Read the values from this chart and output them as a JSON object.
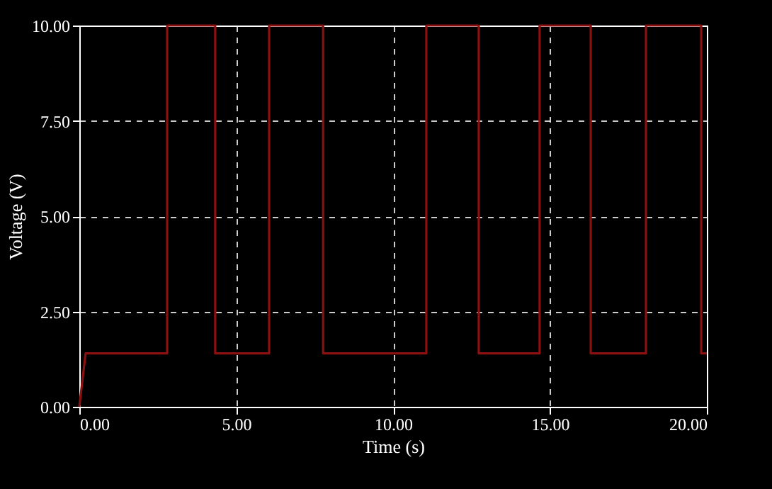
{
  "chart_data": {
    "type": "line",
    "xlabel": "Time (s)",
    "ylabel": "Voltage (V)",
    "x": [
      0,
      0.2,
      2.8,
      2.8,
      4.33,
      4.33,
      6.05,
      6.05,
      7.77,
      7.77,
      11.06,
      11.06,
      12.73,
      12.73,
      14.67,
      14.67,
      16.3,
      16.3,
      18.06,
      18.06,
      19.82,
      19.82,
      20
    ],
    "series": [
      {
        "color": "#8b1010",
        "values": [
          0,
          1.4,
          1.4,
          10,
          10,
          1.4,
          1.4,
          10,
          10,
          1.4,
          1.4,
          10,
          10,
          1.4,
          1.4,
          10,
          10,
          1.4,
          1.4,
          10,
          10,
          1.4,
          1.4
        ]
      }
    ],
    "xlim": [
      0,
      20
    ],
    "xticks": [
      {
        "value": 0,
        "label": "0.00"
      },
      {
        "value": 5,
        "label": "5.00"
      },
      {
        "value": 10,
        "label": "10.00"
      },
      {
        "value": 15,
        "label": "15.00"
      },
      {
        "value": 20,
        "label": "20.00"
      }
    ],
    "ylim": [
      0,
      10
    ],
    "yticks": [
      {
        "value": 0,
        "label": "0.00"
      },
      {
        "value": 2.5,
        "label": "2.50"
      },
      {
        "value": 5,
        "label": "5.00"
      },
      {
        "value": 7.5,
        "label": "7.50"
      },
      {
        "value": 10,
        "label": "10.00"
      }
    ],
    "grid": true,
    "line_style": "solid",
    "marker": "none"
  }
}
